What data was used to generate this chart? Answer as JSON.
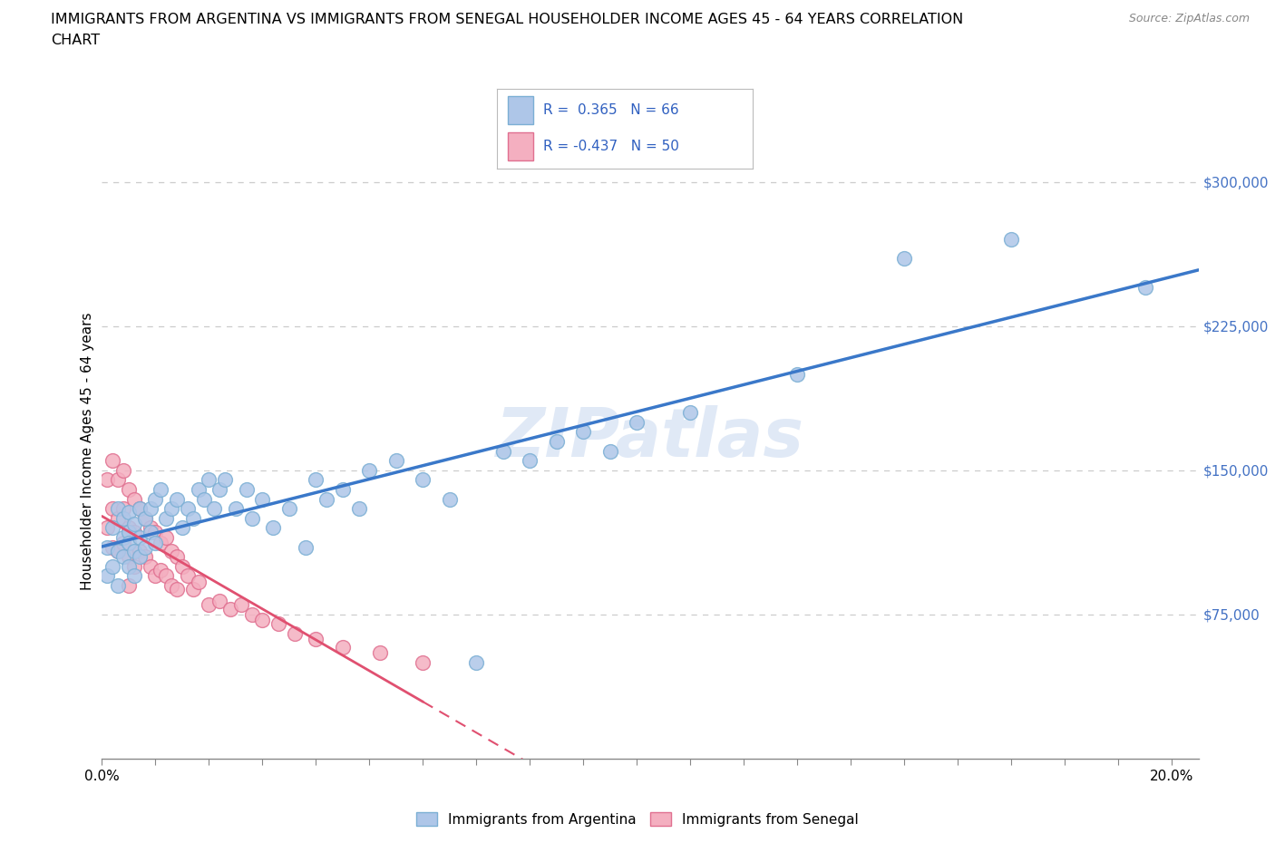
{
  "title_line1": "IMMIGRANTS FROM ARGENTINA VS IMMIGRANTS FROM SENEGAL HOUSEHOLDER INCOME AGES 45 - 64 YEARS CORRELATION",
  "title_line2": "CHART",
  "source_text": "Source: ZipAtlas.com",
  "ylabel": "Householder Income Ages 45 - 64 years",
  "watermark": "ZIPatlas",
  "argentina_color": "#aec6e8",
  "argentina_edge": "#7bafd4",
  "senegal_color": "#f4afc0",
  "senegal_edge": "#e07090",
  "argentina_line_color": "#3a78c9",
  "senegal_line_color": "#e05070",
  "R_argentina": 0.365,
  "N_argentina": 66,
  "R_senegal": -0.437,
  "N_senegal": 50,
  "argentina_x": [
    0.001,
    0.001,
    0.002,
    0.002,
    0.003,
    0.003,
    0.003,
    0.004,
    0.004,
    0.004,
    0.005,
    0.005,
    0.005,
    0.005,
    0.006,
    0.006,
    0.006,
    0.007,
    0.007,
    0.007,
    0.008,
    0.008,
    0.009,
    0.009,
    0.01,
    0.01,
    0.011,
    0.012,
    0.013,
    0.014,
    0.015,
    0.016,
    0.017,
    0.018,
    0.019,
    0.02,
    0.021,
    0.022,
    0.023,
    0.025,
    0.027,
    0.028,
    0.03,
    0.032,
    0.035,
    0.038,
    0.04,
    0.042,
    0.045,
    0.048,
    0.05,
    0.055,
    0.06,
    0.065,
    0.07,
    0.075,
    0.08,
    0.085,
    0.09,
    0.095,
    0.1,
    0.11,
    0.13,
    0.15,
    0.17,
    0.195
  ],
  "argentina_y": [
    110000,
    95000,
    120000,
    100000,
    130000,
    108000,
    90000,
    125000,
    105000,
    115000,
    118000,
    100000,
    128000,
    112000,
    122000,
    108000,
    95000,
    130000,
    115000,
    105000,
    125000,
    110000,
    130000,
    118000,
    135000,
    112000,
    140000,
    125000,
    130000,
    135000,
    120000,
    130000,
    125000,
    140000,
    135000,
    145000,
    130000,
    140000,
    145000,
    130000,
    140000,
    125000,
    135000,
    120000,
    130000,
    110000,
    145000,
    135000,
    140000,
    130000,
    150000,
    155000,
    145000,
    135000,
    50000,
    160000,
    155000,
    165000,
    170000,
    160000,
    175000,
    180000,
    200000,
    260000,
    270000,
    245000
  ],
  "senegal_x": [
    0.001,
    0.001,
    0.002,
    0.002,
    0.002,
    0.003,
    0.003,
    0.003,
    0.004,
    0.004,
    0.004,
    0.005,
    0.005,
    0.005,
    0.005,
    0.006,
    0.006,
    0.006,
    0.007,
    0.007,
    0.008,
    0.008,
    0.009,
    0.009,
    0.01,
    0.01,
    0.011,
    0.011,
    0.012,
    0.012,
    0.013,
    0.013,
    0.014,
    0.014,
    0.015,
    0.016,
    0.017,
    0.018,
    0.02,
    0.022,
    0.024,
    0.026,
    0.028,
    0.03,
    0.033,
    0.036,
    0.04,
    0.045,
    0.052,
    0.06
  ],
  "senegal_y": [
    145000,
    120000,
    155000,
    130000,
    110000,
    145000,
    125000,
    108000,
    150000,
    130000,
    112000,
    140000,
    120000,
    105000,
    90000,
    135000,
    118000,
    100000,
    130000,
    108000,
    125000,
    105000,
    120000,
    100000,
    118000,
    95000,
    112000,
    98000,
    115000,
    95000,
    108000,
    90000,
    105000,
    88000,
    100000,
    95000,
    88000,
    92000,
    80000,
    82000,
    78000,
    80000,
    75000,
    72000,
    70000,
    65000,
    62000,
    58000,
    55000,
    50000
  ],
  "xlim": [
    0.0,
    0.205
  ],
  "ylim": [
    0,
    320000
  ],
  "ytick_vals": [
    75000,
    150000,
    225000,
    300000
  ],
  "ytick_labels": [
    "$75,000",
    "$150,000",
    "$225,000",
    "$300,000"
  ],
  "grid_color": "#cccccc"
}
